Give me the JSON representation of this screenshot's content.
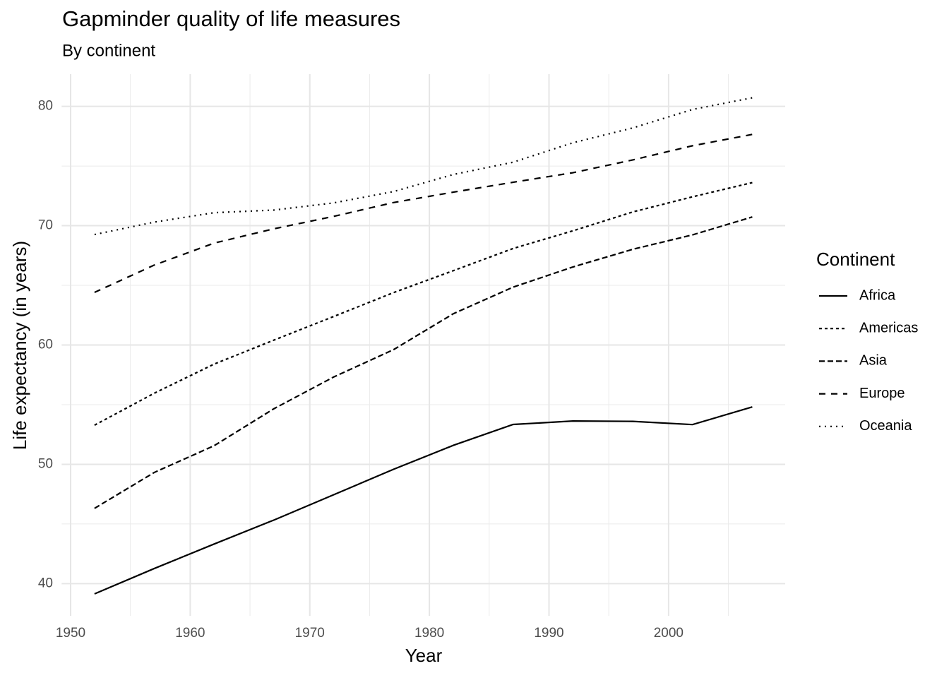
{
  "chart_data": {
    "type": "line",
    "title": "Gapminder quality of life measures",
    "subtitle": "By continent",
    "x_label": "Year",
    "y_label": "Life expectancy (in years)",
    "legend_title": "Continent",
    "legend_position": "right",
    "grid": true,
    "x": [
      1952,
      1957,
      1962,
      1967,
      1972,
      1977,
      1982,
      1987,
      1992,
      1997,
      2002,
      2007
    ],
    "xlim": [
      1949.25,
      2009.75
    ],
    "xticks": [
      1950,
      1960,
      1970,
      1980,
      1990,
      2000
    ],
    "ylim": [
      37.3,
      82.7
    ],
    "yticks": [
      40,
      50,
      60,
      70,
      80
    ],
    "series": [
      {
        "name": "Africa",
        "color": "#000000",
        "linetype": "solid",
        "values": [
          39.14,
          41.27,
          43.32,
          45.33,
          47.45,
          49.58,
          51.59,
          53.34,
          53.63,
          53.6,
          53.33,
          54.81
        ]
      },
      {
        "name": "Americas",
        "color": "#000000",
        "linetype": "22",
        "values": [
          53.28,
          55.96,
          58.4,
          60.41,
          62.39,
          64.39,
          66.23,
          68.09,
          69.57,
          71.15,
          72.42,
          73.61
        ]
      },
      {
        "name": "Asia",
        "color": "#000000",
        "linetype": "42",
        "values": [
          46.31,
          49.32,
          51.56,
          54.66,
          57.32,
          59.61,
          62.62,
          64.85,
          66.54,
          68.02,
          69.23,
          70.73
        ]
      },
      {
        "name": "Europe",
        "color": "#000000",
        "linetype": "44",
        "values": [
          64.41,
          66.7,
          68.54,
          69.74,
          70.78,
          71.94,
          72.81,
          73.64,
          74.44,
          75.51,
          76.7,
          77.65
        ]
      },
      {
        "name": "Oceania",
        "color": "#000000",
        "linetype": "13",
        "values": [
          69.26,
          70.3,
          71.09,
          71.31,
          71.91,
          72.86,
          74.29,
          75.32,
          76.95,
          78.19,
          79.74,
          80.72
        ]
      }
    ]
  }
}
